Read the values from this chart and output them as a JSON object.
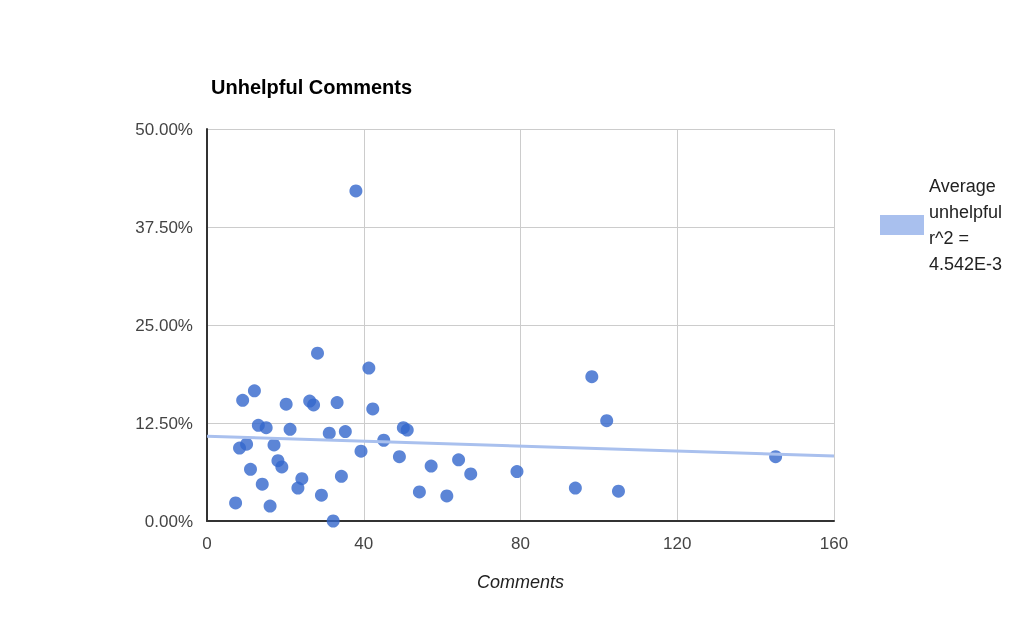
{
  "chart_data": {
    "type": "scatter",
    "title": "Unhelpful Comments",
    "xlabel": "Comments",
    "xlim": [
      0,
      160
    ],
    "xticks": [
      0,
      40,
      80,
      120,
      160
    ],
    "ylim": [
      0,
      50
    ],
    "yticks": [
      {
        "value": 0,
        "label": "0.00%"
      },
      {
        "value": 12.5,
        "label": "12.50%"
      },
      {
        "value": 25,
        "label": "25.00%"
      },
      {
        "value": 37.5,
        "label": "37.50%"
      },
      {
        "value": 50,
        "label": "50.00%"
      }
    ],
    "grid": true,
    "legend": "top right",
    "series": [
      {
        "type": "scatter",
        "marker": "circle",
        "color": "#3366cc",
        "x": [
          7.3,
          8.3,
          9.1,
          10.1,
          11.1,
          12.1,
          13.1,
          14.1,
          15.1,
          16.1,
          17.1,
          18.1,
          19.1,
          20.2,
          21.2,
          23.2,
          24.2,
          26.2,
          27.2,
          28.2,
          29.2,
          31.2,
          32.2,
          33.2,
          34.3,
          35.3,
          38.0,
          39.3,
          41.3,
          42.3,
          45.1,
          49.1,
          50.1,
          51.1,
          54.2,
          57.2,
          61.2,
          64.2,
          67.3,
          79.1,
          94.0,
          98.2,
          102.0,
          105.0,
          145.1
        ],
        "values": [
          2.3,
          9.3,
          15.4,
          9.8,
          6.6,
          16.6,
          12.2,
          4.7,
          11.9,
          1.9,
          9.7,
          7.7,
          6.9,
          14.9,
          11.7,
          4.2,
          5.4,
          15.3,
          14.8,
          21.4,
          3.3,
          11.2,
          0,
          15.1,
          5.7,
          11.4,
          42.1,
          8.9,
          19.5,
          14.3,
          10.3,
          8.2,
          11.9,
          11.6,
          3.7,
          7.0,
          3.2,
          7.8,
          6.0,
          6.3,
          4.2,
          18.4,
          12.8,
          3.8,
          8.2
        ]
      },
      {
        "type": "line",
        "marker": "none",
        "name": "Average unhelpful r^2 = 4.542E-3",
        "color": "#a9c0ee",
        "x": [
          0,
          160
        ],
        "values": [
          10.8,
          8.3
        ]
      }
    ]
  }
}
